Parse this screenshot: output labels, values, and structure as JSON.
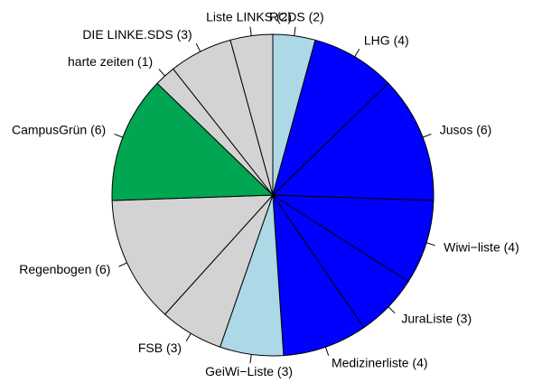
{
  "chart_data": {
    "type": "pie",
    "title": "",
    "direction": "clockwise",
    "start": "top",
    "slices": [
      {
        "label": "RCDS (2)",
        "value": 2,
        "color": "#add8e6"
      },
      {
        "label": "LHG (4)",
        "value": 4,
        "color": "#0000ff"
      },
      {
        "label": "Jusos (6)",
        "value": 6,
        "color": "#0000ff"
      },
      {
        "label": "Wiwi−liste (4)",
        "value": 4,
        "color": "#0000ff"
      },
      {
        "label": "JuraListe (3)",
        "value": 3,
        "color": "#0000ff"
      },
      {
        "label": "Medizinerliste (4)",
        "value": 4,
        "color": "#0000ff"
      },
      {
        "label": "GeiWi−Liste (3)",
        "value": 3,
        "color": "#add8e6"
      },
      {
        "label": "FSB (3)",
        "value": 3,
        "color": "#d3d3d3"
      },
      {
        "label": "Regenbogen (6)",
        "value": 6,
        "color": "#d3d3d3"
      },
      {
        "label": "CampusGrün (6)",
        "value": 6,
        "color": "#00a651"
      },
      {
        "label": "harte zeiten (1)",
        "value": 1,
        "color": "#d3d3d3"
      },
      {
        "label": "DIE LINKE.SDS (3)",
        "value": 3,
        "color": "#d3d3d3"
      },
      {
        "label": "Liste LINKS (2)",
        "value": 2,
        "color": "#d3d3d3"
      }
    ]
  }
}
